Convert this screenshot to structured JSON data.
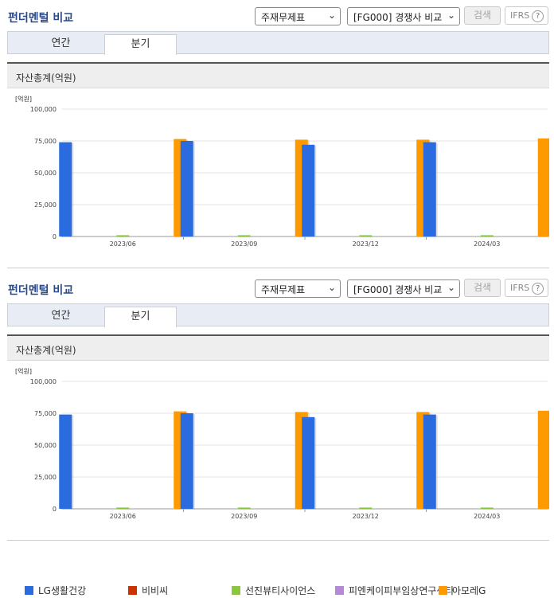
{
  "panels": [
    {
      "title": "펀더멘털 비교",
      "select_statement": "주재무제표",
      "select_compare": "[FG000] 경쟁사 비교",
      "search_label": "검색",
      "ifrs_label": "IFRS",
      "help_label": "?",
      "tabs": [
        {
          "label": "연간"
        },
        {
          "label": "분기"
        }
      ],
      "active_tab": 1,
      "chart_header": "자산총계(억원)"
    },
    {
      "title": "펀더멘털 비교",
      "select_statement": "주재무제표",
      "select_compare": "[FG000] 경쟁사 비교",
      "search_label": "검색",
      "ifrs_label": "IFRS",
      "help_label": "?",
      "tabs": [
        {
          "label": "연간"
        },
        {
          "label": "분기"
        }
      ],
      "active_tab": 1,
      "chart_header": "자산총계(억원)"
    }
  ],
  "chart_data": [
    {
      "type": "bar",
      "unit_label": "[억원]",
      "categories": [
        "2023/06",
        "2023/09",
        "2023/12",
        "2024/03"
      ],
      "ylim": [
        0,
        100000
      ],
      "yticks": [
        "100,000",
        "75,000",
        "50,000",
        "25,000",
        "0"
      ],
      "ytick_values": [
        100000,
        75000,
        50000,
        25000,
        0
      ],
      "grid": true,
      "legend_position": "bottom",
      "series": [
        {
          "name": "LG생활건강",
          "color": "#2a6be0",
          "values": [
            74000,
            75000,
            72000,
            74000
          ]
        },
        {
          "name": "비비씨",
          "color": "#cc3300",
          "values": [
            0,
            0,
            0,
            0
          ]
        },
        {
          "name": "선진뷰티사이언스",
          "color": "#8cc63f",
          "values": [
            1000,
            1000,
            1000,
            1000
          ]
        },
        {
          "name": "피엔케이피부임상연구센타",
          "color": "#b48ad8",
          "values": [
            0,
            0,
            0,
            0
          ]
        },
        {
          "name": "아모레G",
          "color": "#ff9900",
          "values": [
            76500,
            76000,
            76000,
            77000
          ]
        }
      ]
    },
    {
      "type": "bar",
      "unit_label": "[억원]",
      "categories": [
        "2023/06",
        "2023/09",
        "2023/12",
        "2024/03"
      ],
      "ylim": [
        0,
        100000
      ],
      "yticks": [
        "100,000",
        "75,000",
        "50,000",
        "25,000",
        "0"
      ],
      "ytick_values": [
        100000,
        75000,
        50000,
        25000,
        0
      ],
      "grid": true,
      "legend_position": "bottom",
      "series": [
        {
          "name": "LG생활건강",
          "color": "#2a6be0",
          "values": [
            74000,
            75000,
            72000,
            74000
          ]
        },
        {
          "name": "비비씨",
          "color": "#cc3300",
          "values": [
            0,
            0,
            0,
            0
          ]
        },
        {
          "name": "선진뷰티사이언스",
          "color": "#8cc63f",
          "values": [
            1000,
            1000,
            1000,
            1000
          ]
        },
        {
          "name": "피엔케이피부임상연구센타",
          "color": "#b48ad8",
          "values": [
            0,
            0,
            0,
            0
          ]
        },
        {
          "name": "아모레G",
          "color": "#ff9900",
          "values": [
            76500,
            76000,
            76000,
            77000
          ]
        }
      ]
    }
  ]
}
